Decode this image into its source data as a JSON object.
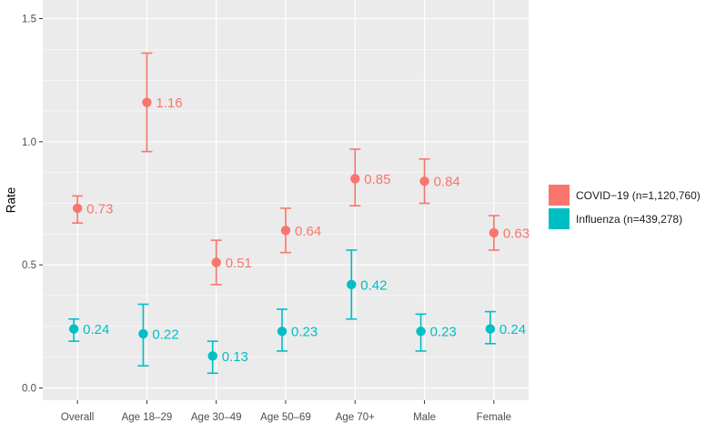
{
  "chart_data": {
    "type": "scatter",
    "subtype": "point-with-error-bars",
    "title": "",
    "xlabel": "",
    "ylabel": "Rate",
    "ylim": [
      0,
      1.5
    ],
    "yticks": [
      0.0,
      0.5,
      1.0,
      1.5
    ],
    "ytick_labels": [
      "0.0",
      "0.5",
      "1.0",
      "1.5"
    ],
    "grid": true,
    "legend_position": "right",
    "categories": [
      "Overall",
      "Age 18–29",
      "Age 30–49",
      "Age 50–69",
      "Age 70+",
      "Male",
      "Female"
    ],
    "series": [
      {
        "name": "COVID−19 (n=1,120,760)",
        "color": "#F8766D",
        "values": [
          0.73,
          1.16,
          0.51,
          0.64,
          0.85,
          0.84,
          0.63
        ],
        "lower": [
          0.67,
          0.96,
          0.42,
          0.55,
          0.74,
          0.75,
          0.56
        ],
        "upper": [
          0.78,
          1.36,
          0.6,
          0.73,
          0.97,
          0.93,
          0.7
        ],
        "labels": [
          "0.73",
          "1.16",
          "0.51",
          "0.64",
          "0.85",
          "0.84",
          "0.63"
        ]
      },
      {
        "name": "Influenza (n=439,278)",
        "color": "#00BFC4",
        "values": [
          0.24,
          0.22,
          0.13,
          0.23,
          0.42,
          0.23,
          0.24
        ],
        "lower": [
          0.19,
          0.09,
          0.06,
          0.15,
          0.28,
          0.15,
          0.18
        ],
        "upper": [
          0.28,
          0.34,
          0.19,
          0.32,
          0.56,
          0.3,
          0.31
        ],
        "labels": [
          "0.24",
          "0.22",
          "0.13",
          "0.23",
          "0.42",
          "0.23",
          "0.24"
        ]
      }
    ]
  }
}
